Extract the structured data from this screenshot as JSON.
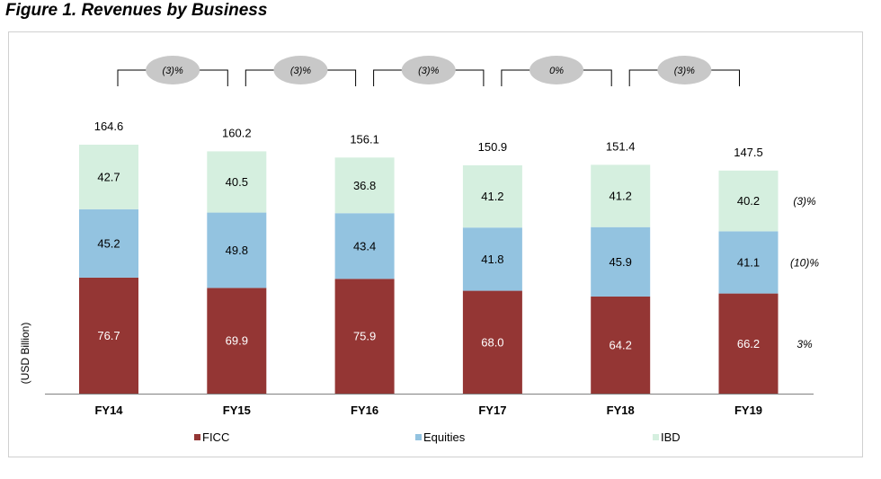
{
  "figure_title": "Figure 1. Revenues by Business",
  "chart_data": {
    "type": "bar",
    "stacked": true,
    "categories": [
      "FY14",
      "FY15",
      "FY16",
      "FY17",
      "FY18",
      "FY19"
    ],
    "series": [
      {
        "name": "FICC",
        "values": [
          76.7,
          69.9,
          75.9,
          68.0,
          64.2,
          66.2
        ],
        "color": "#943634",
        "labels": [
          "76.7",
          "69.9",
          "75.9",
          "68.0",
          "64.2",
          "66.2"
        ]
      },
      {
        "name": "Equities",
        "values": [
          45.2,
          49.8,
          43.4,
          41.8,
          45.9,
          41.1
        ],
        "color": "#93c3e0",
        "labels": [
          "45.2",
          "49.8",
          "43.4",
          "41.8",
          "45.9",
          "41.1"
        ]
      },
      {
        "name": "IBD",
        "values": [
          42.7,
          40.5,
          36.8,
          41.2,
          41.2,
          40.2
        ],
        "color": "#d5efdf",
        "labels": [
          "42.7",
          "40.5",
          "36.8",
          "41.2",
          "41.2",
          "40.2"
        ]
      }
    ],
    "totals": [
      "164.6",
      "160.2",
      "156.1",
      "150.9",
      "151.4",
      "147.5"
    ],
    "ylabel": "(USD Billion)",
    "ylim": [
      0,
      170
    ],
    "grid": false,
    "legend": "bottom",
    "yoy_changes": [
      "(3)%",
      "(3)%",
      "(3)%",
      "0%",
      "(3)%"
    ],
    "series_change_labels": [
      "3%",
      "(10)%",
      "(3)%"
    ]
  }
}
